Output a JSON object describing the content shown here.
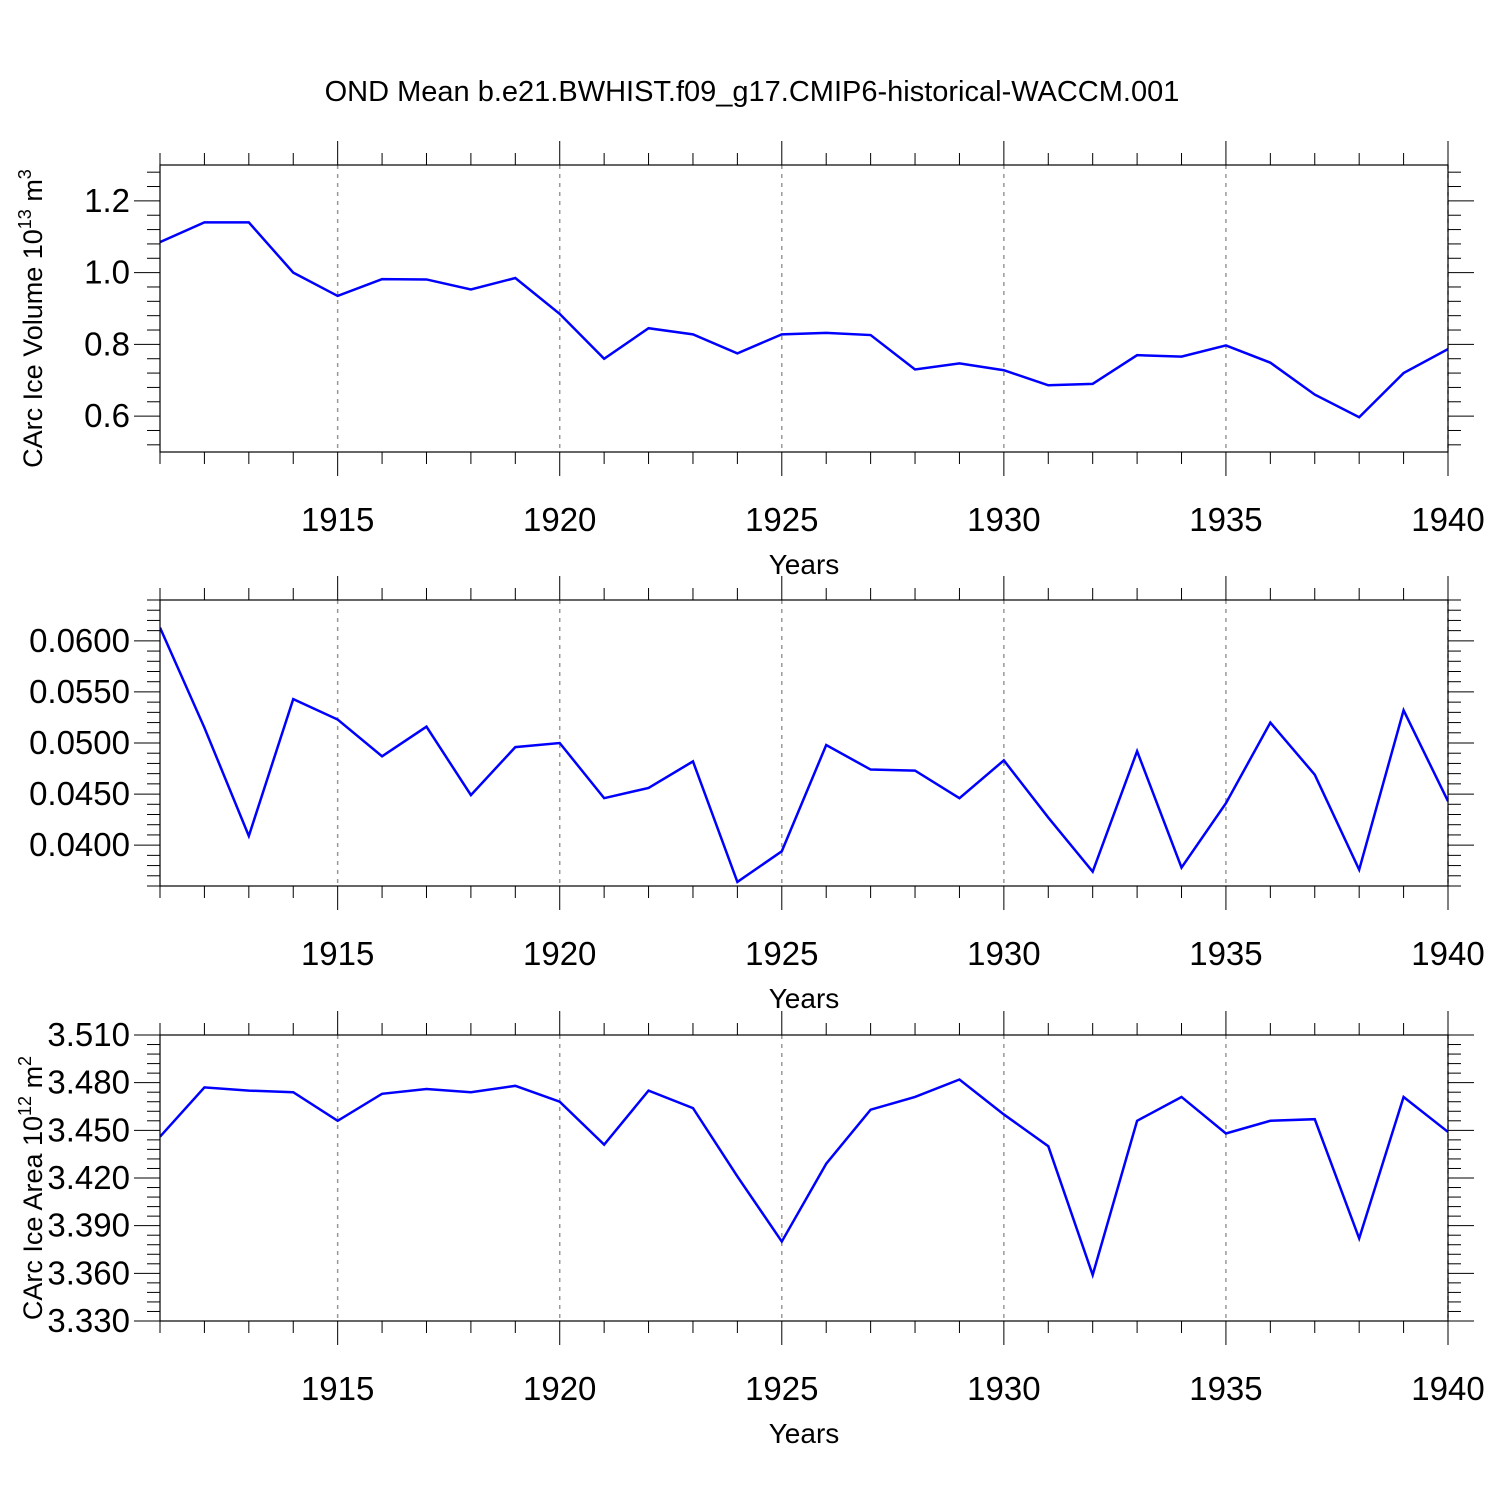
{
  "title": "OND Mean b.e21.BWHIST.f09_g17.CMIP6-historical-WACCM.001",
  "colors": {
    "line": "#0000ff",
    "axis": "#000000",
    "grid": "#999999"
  },
  "chart_data": [
    {
      "type": "line",
      "xlabel": "Years",
      "ylabel": "CArc Ice Volume 10",
      "ylabel_sup1": "13",
      "ylabel_mid": " m",
      "ylabel_sup2": "3",
      "xlim": [
        1911,
        1940
      ],
      "ylim": [
        0.5,
        1.3
      ],
      "xticks": [
        "1915",
        "1920",
        "1925",
        "1930",
        "1935",
        "1940"
      ],
      "yticks": [
        "0.6",
        "0.8",
        "1.0",
        "1.2"
      ],
      "grid": "vertical dashed at major x ticks",
      "x": [
        1911,
        1912,
        1913,
        1914,
        1915,
        1916,
        1917,
        1918,
        1919,
        1920,
        1921,
        1922,
        1923,
        1924,
        1925,
        1926,
        1927,
        1928,
        1929,
        1930,
        1931,
        1932,
        1933,
        1934,
        1935,
        1936,
        1937,
        1938,
        1939,
        1940
      ],
      "values": [
        1.085,
        1.14,
        1.14,
        1.0,
        0.935,
        0.982,
        0.981,
        0.953,
        0.985,
        0.885,
        0.76,
        0.845,
        0.828,
        0.775,
        0.828,
        0.832,
        0.826,
        0.73,
        0.747,
        0.728,
        0.686,
        0.69,
        0.77,
        0.766,
        0.797,
        0.749,
        0.66,
        0.597,
        0.72,
        0.787
      ]
    },
    {
      "type": "line",
      "xlabel": "Years",
      "ylabel": "",
      "xlim": [
        1911,
        1940
      ],
      "ylim": [
        0.036,
        0.064
      ],
      "xticks": [
        "1915",
        "1920",
        "1925",
        "1930",
        "1935",
        "1940"
      ],
      "yticks": [
        "0.0400",
        "0.0450",
        "0.0500",
        "0.0550",
        "0.0600"
      ],
      "grid": "vertical dashed at major x ticks",
      "x": [
        1911,
        1912,
        1913,
        1914,
        1915,
        1916,
        1917,
        1918,
        1919,
        1920,
        1921,
        1922,
        1923,
        1924,
        1925,
        1926,
        1927,
        1928,
        1929,
        1930,
        1931,
        1932,
        1933,
        1934,
        1935,
        1936,
        1937,
        1938,
        1939,
        1940
      ],
      "values": [
        0.0613,
        0.0515,
        0.0409,
        0.0543,
        0.0523,
        0.0487,
        0.0516,
        0.0449,
        0.0496,
        0.05,
        0.0446,
        0.0456,
        0.0482,
        0.0364,
        0.0394,
        0.0498,
        0.0474,
        0.0473,
        0.0446,
        0.0483,
        0.0427,
        0.0374,
        0.0492,
        0.0378,
        0.0441,
        0.052,
        0.0469,
        0.0376,
        0.0532,
        0.0443
      ]
    },
    {
      "type": "line",
      "xlabel": "Years",
      "ylabel": "CArc Ice Area 10",
      "ylabel_sup1": "12",
      "ylabel_mid": " m",
      "ylabel_sup2": "2",
      "xlim": [
        1911,
        1940
      ],
      "ylim": [
        3.33,
        3.51
      ],
      "xticks": [
        "1915",
        "1920",
        "1925",
        "1930",
        "1935",
        "1940"
      ],
      "yticks": [
        "3.330",
        "3.360",
        "3.390",
        "3.420",
        "3.450",
        "3.480",
        "3.510"
      ],
      "grid": "vertical dashed at major x ticks",
      "x": [
        1911,
        1912,
        1913,
        1914,
        1915,
        1916,
        1917,
        1918,
        1919,
        1920,
        1921,
        1922,
        1923,
        1924,
        1925,
        1926,
        1927,
        1928,
        1929,
        1930,
        1931,
        1932,
        1933,
        1934,
        1935,
        1936,
        1937,
        1938,
        1939,
        1940
      ],
      "values": [
        3.446,
        3.477,
        3.475,
        3.474,
        3.456,
        3.473,
        3.476,
        3.474,
        3.478,
        3.468,
        3.441,
        3.475,
        3.464,
        3.421,
        3.38,
        3.429,
        3.463,
        3.471,
        3.482,
        3.46,
        3.44,
        3.359,
        3.456,
        3.471,
        3.448,
        3.456,
        3.457,
        3.382,
        3.471,
        3.449
      ]
    }
  ]
}
